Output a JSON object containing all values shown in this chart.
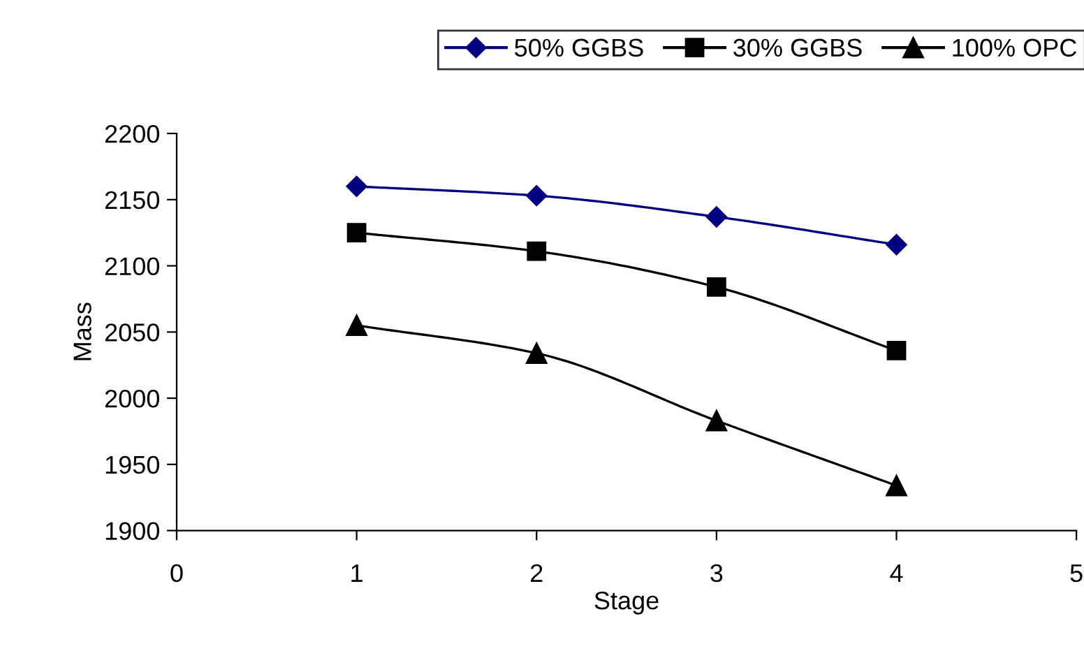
{
  "chart_data": {
    "type": "line",
    "xlabel": "Stage",
    "ylabel": "Mass",
    "x": [
      1,
      2,
      3,
      4
    ],
    "series": [
      {
        "name": "50% GGBS",
        "color": "#000080",
        "marker": "diamond",
        "values": [
          2160,
          2153,
          2137,
          2116
        ]
      },
      {
        "name": "30% GGBS",
        "color": "#000000",
        "marker": "square",
        "values": [
          2125,
          2111,
          2084,
          2036
        ]
      },
      {
        "name": "100% OPC",
        "color": "#000000",
        "marker": "triangle",
        "values": [
          2055,
          2034,
          1983,
          1934
        ]
      }
    ],
    "xlim": [
      0,
      5
    ],
    "xticks": [
      0,
      1,
      2,
      3,
      4,
      5
    ],
    "ylim": [
      1900,
      2200
    ],
    "yticks": [
      1900,
      1950,
      2000,
      2050,
      2100,
      2150,
      2200
    ],
    "grid": false,
    "legend": "top",
    "line_style": "solid"
  }
}
